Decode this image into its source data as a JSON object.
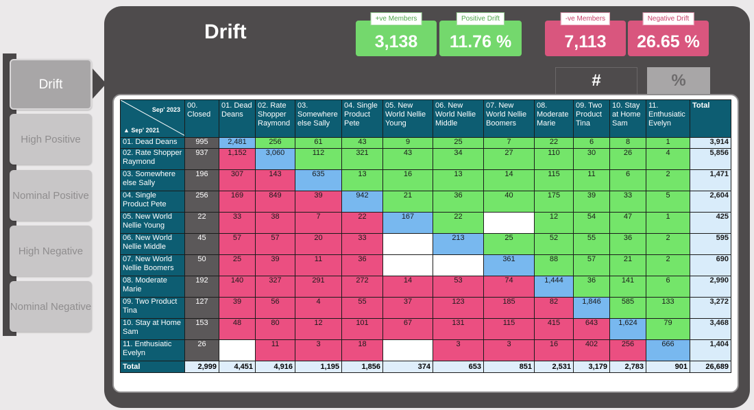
{
  "nav": {
    "items": [
      {
        "label": "Drift",
        "active": true
      },
      {
        "label": "High Positive",
        "active": false
      },
      {
        "label": "Nominal Positive",
        "active": false
      },
      {
        "label": "High Negative",
        "active": false
      },
      {
        "label": "Nominal Negative",
        "active": false
      }
    ]
  },
  "header": {
    "title": "Drift"
  },
  "kpis": [
    {
      "tag": "+ve Members",
      "value": "3,138",
      "kind": "pos"
    },
    {
      "tag": "Positive Drift",
      "value": "11.76 %",
      "kind": "pos"
    },
    {
      "tag": "-ve Members",
      "value": "7,113",
      "kind": "neg"
    },
    {
      "tag": "Negative Drift",
      "value": "26.65 %",
      "kind": "neg"
    }
  ],
  "toggles": {
    "count_label": "#",
    "percent_label": "%"
  },
  "colors": {
    "positive": "#74e56a",
    "negative": "#eb4f81",
    "diagonal": "#78b8ef",
    "closed": "#5b5859",
    "header": "#0d5d72"
  },
  "matrix": {
    "corner_top": "Sep' 2023",
    "corner_bottom": "Sep' 2021",
    "columns": [
      "00. Closed",
      "01. Dead Deans",
      "02. Rate Shopper Raymond",
      "03. Somewhere else Sally",
      "04. Single Product Pete",
      "05. New World Nellie Young",
      "06. New World Nellie Middle",
      "07. New World Nellie Boomers",
      "08. Moderate Marie",
      "09. Two Product Tina",
      "10. Stay at Home Sam",
      "11. Enthusiatic Evelyn",
      "Total"
    ],
    "rows": [
      {
        "label": "01. Dead Deans",
        "cells": [
          "995",
          "2,481",
          "256",
          "61",
          "43",
          "9",
          "25",
          "7",
          "22",
          "6",
          "8",
          "1"
        ],
        "total": "3,914"
      },
      {
        "label": "02. Rate Shopper Raymond",
        "cells": [
          "937",
          "1,152",
          "3,060",
          "112",
          "321",
          "43",
          "34",
          "27",
          "110",
          "30",
          "26",
          "4"
        ],
        "total": "5,856"
      },
      {
        "label": "03. Somewhere else Sally",
        "cells": [
          "196",
          "307",
          "143",
          "635",
          "13",
          "16",
          "13",
          "14",
          "115",
          "11",
          "6",
          "2"
        ],
        "total": "1,471"
      },
      {
        "label": "04. Single Product Pete",
        "cells": [
          "256",
          "169",
          "849",
          "39",
          "942",
          "21",
          "36",
          "40",
          "175",
          "39",
          "33",
          "5"
        ],
        "total": "2,604"
      },
      {
        "label": "05. New World Nellie Young",
        "cells": [
          "22",
          "33",
          "38",
          "7",
          "22",
          "167",
          "22",
          "",
          "12",
          "54",
          "47",
          "1"
        ],
        "total": "425"
      },
      {
        "label": "06. New World Nellie Middle",
        "cells": [
          "45",
          "57",
          "57",
          "20",
          "33",
          "",
          "213",
          "25",
          "52",
          "55",
          "36",
          "2"
        ],
        "total": "595"
      },
      {
        "label": "07. New World Nellie Boomers",
        "cells": [
          "50",
          "25",
          "39",
          "11",
          "36",
          "",
          "",
          "361",
          "88",
          "57",
          "21",
          "2"
        ],
        "total": "690"
      },
      {
        "label": "08. Moderate Marie",
        "cells": [
          "192",
          "140",
          "327",
          "291",
          "272",
          "14",
          "53",
          "74",
          "1,444",
          "36",
          "141",
          "6"
        ],
        "total": "2,990"
      },
      {
        "label": "09. Two Product Tina",
        "cells": [
          "127",
          "39",
          "56",
          "4",
          "55",
          "37",
          "123",
          "185",
          "82",
          "1,846",
          "585",
          "133"
        ],
        "total": "3,272"
      },
      {
        "label": "10. Stay at Home Sam",
        "cells": [
          "153",
          "48",
          "80",
          "12",
          "101",
          "67",
          "131",
          "115",
          "415",
          "643",
          "1,624",
          "79"
        ],
        "total": "3,468"
      },
      {
        "label": "11. Enthusiatic Evelyn",
        "cells": [
          "26",
          "",
          "11",
          "3",
          "18",
          "",
          "3",
          "3",
          "16",
          "402",
          "256",
          "666"
        ],
        "total": "1,404"
      }
    ],
    "footer": {
      "label": "Total",
      "cells": [
        "2,999",
        "4,451",
        "4,916",
        "1,195",
        "1,856",
        "374",
        "653",
        "851",
        "2,531",
        "3,179",
        "2,783",
        "901"
      ],
      "total": "26,689"
    }
  }
}
